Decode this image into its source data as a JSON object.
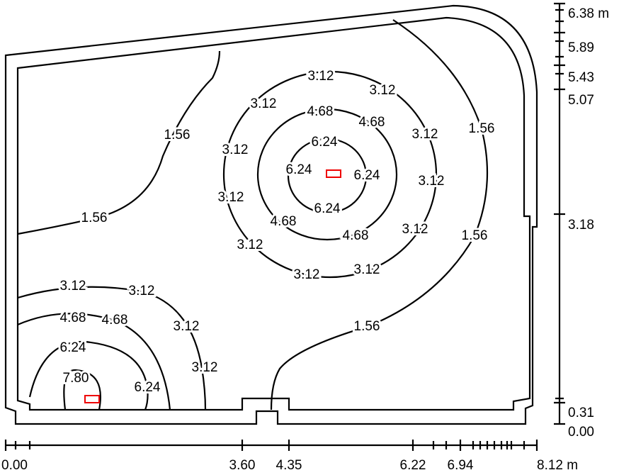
{
  "contour_labels": [
    "3.12",
    "3.12",
    "3.12",
    "4.68",
    "4.68",
    "3.12",
    "1.56",
    "1.56",
    "3.12",
    "6.24",
    "6.24",
    "6.24",
    "3.12",
    "3.12",
    "6.24",
    "4.68",
    "4.68",
    "3.12",
    "1.56",
    "1.56",
    "3.12",
    "3.12",
    "3.12",
    "1.56",
    "3.12",
    "3.12",
    "4.68",
    "4.68",
    "3.12",
    "6.24",
    "3.12",
    "7.80",
    "6.24"
  ],
  "bottom_axis_labels": [
    "0.00",
    "3.60",
    "4.35",
    "6.22",
    "6.94",
    "8.12 m"
  ],
  "right_axis_labels": [
    "6.38 m",
    "5.89",
    "5.43",
    "5.07",
    "3.18",
    "0.31",
    "0.00"
  ]
}
